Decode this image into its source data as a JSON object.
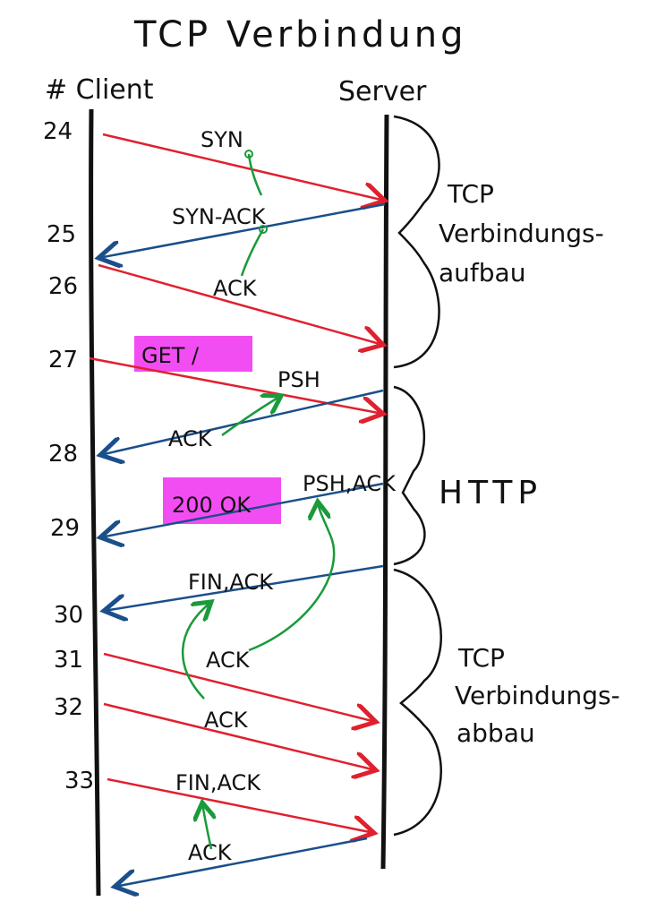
{
  "title": "TCP Verbindung",
  "columns": {
    "client": "# Client",
    "server": "Server"
  },
  "colors": {
    "request": "#e0202e",
    "response": "#1a4f8a",
    "ack_link": "#1a9a3a",
    "highlight": "#f24df2",
    "ink": "#111111"
  },
  "rows": [
    {
      "num": "24",
      "label": "SYN",
      "dir": "to-server"
    },
    {
      "num": "25",
      "label": "SYN-ACK",
      "dir": "to-client"
    },
    {
      "num": "26",
      "label": "ACK",
      "dir": "to-server"
    },
    {
      "num": "27",
      "label": "GET /",
      "dir": "to-server"
    },
    {
      "num": "28",
      "label": "ACK",
      "dir": "to-client"
    },
    {
      "num": "29",
      "label": "200 OK",
      "dir": "to-client"
    },
    {
      "num": "30",
      "label": "FIN,ACK",
      "dir": "to-client"
    },
    {
      "num": "31",
      "label": "ACK",
      "dir": "to-server"
    },
    {
      "num": "32",
      "label": "ACK",
      "dir": "to-server"
    },
    {
      "num": "33",
      "label": "FIN,ACK",
      "dir": "to-server"
    },
    {
      "num": "",
      "label": "ACK",
      "dir": "to-client"
    }
  ],
  "extra_labels": {
    "psh": "PSH",
    "psh_ack": "PSH,ACK"
  },
  "phases": [
    {
      "lines": [
        "TCP",
        "Verbindungs-",
        "aufbau"
      ]
    },
    {
      "lines": [
        "HTTP"
      ]
    },
    {
      "lines": [
        "TCP",
        "Verbindungs-",
        "abbau"
      ]
    }
  ]
}
